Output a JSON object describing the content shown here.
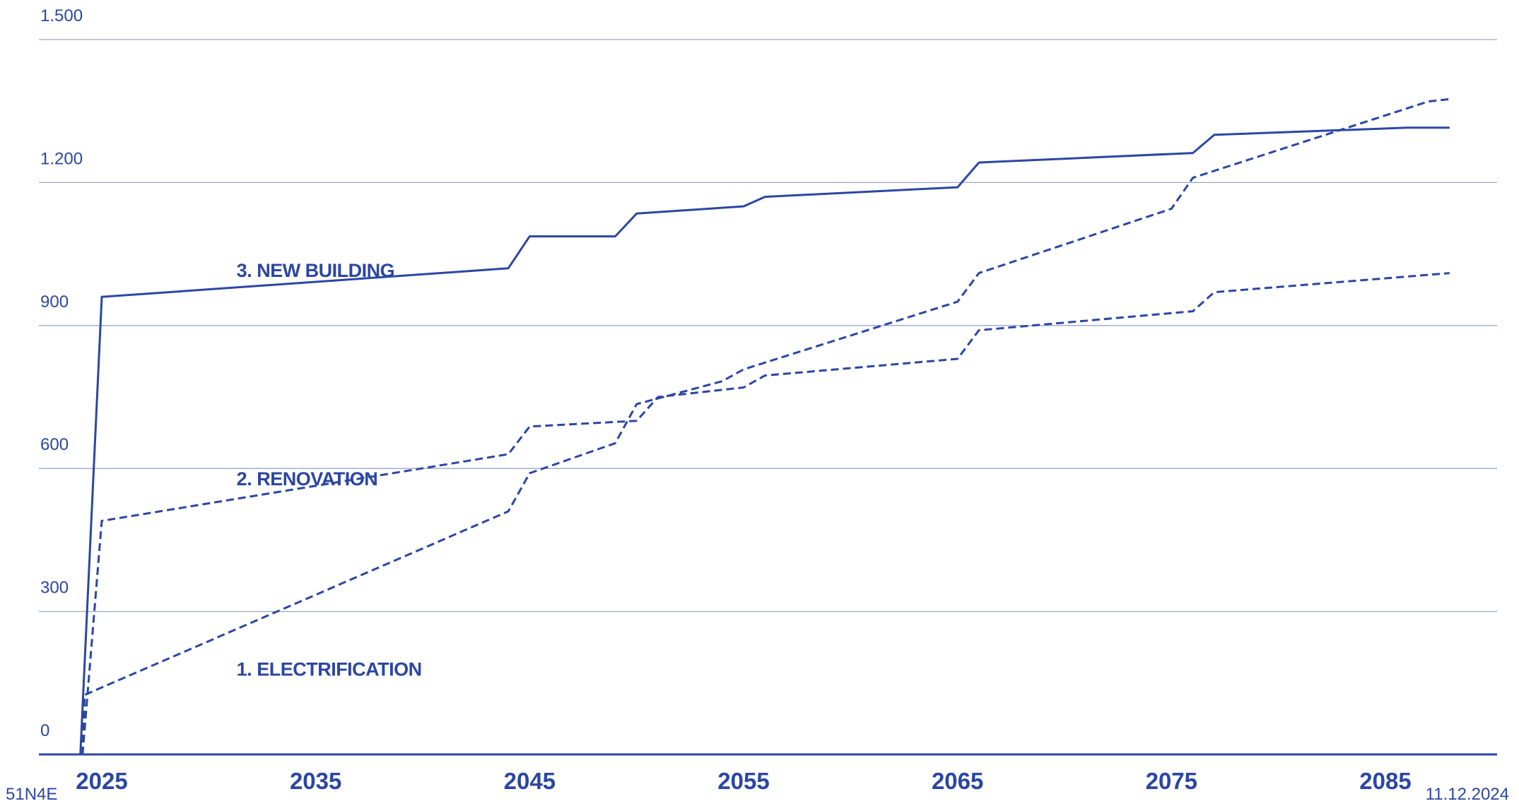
{
  "colors": {
    "line": "#2b46a3",
    "grid": "#9aa6cc"
  },
  "footer": {
    "left": "51N4E",
    "right": "11.12.2024"
  },
  "chart_data": {
    "type": "line",
    "title": "",
    "xlabel": "",
    "ylabel": "",
    "xlim": [
      2024,
      2088
    ],
    "ylim": [
      0,
      1500
    ],
    "x_ticks": [
      2025,
      2035,
      2045,
      2055,
      2065,
      2075,
      2085
    ],
    "x_tick_labels": [
      "2025",
      "2035",
      "2045",
      "2055",
      "2065",
      "2075",
      "2085"
    ],
    "y_ticks": [
      0,
      300,
      600,
      900,
      1200,
      1500
    ],
    "y_tick_labels": [
      "0",
      "300",
      "600",
      "900",
      "1.200",
      "1.500"
    ],
    "grid": true,
    "series": [
      {
        "name": "1. ELECTRIFICATION",
        "style": "dashed",
        "points": [
          [
            2024.1,
            0
          ],
          [
            2024.2,
            125
          ],
          [
            2044,
            510
          ],
          [
            2045,
            590
          ],
          [
            2049,
            653
          ],
          [
            2050,
            735
          ],
          [
            2054,
            783
          ],
          [
            2055,
            808
          ],
          [
            2065,
            950
          ],
          [
            2066,
            1010
          ],
          [
            2075,
            1145
          ],
          [
            2076,
            1210
          ],
          [
            2087,
            1370
          ],
          [
            2088,
            1375
          ]
        ]
      },
      {
        "name": "2. RENOVATION",
        "style": "dashed",
        "points": [
          [
            2024.1,
            0
          ],
          [
            2025,
            490
          ],
          [
            2044,
            630
          ],
          [
            2045,
            688
          ],
          [
            2050,
            700
          ],
          [
            2051,
            750
          ],
          [
            2055,
            770
          ],
          [
            2056,
            795
          ],
          [
            2065,
            830
          ],
          [
            2066,
            890
          ],
          [
            2076,
            930
          ],
          [
            2077,
            970
          ],
          [
            2088,
            1010
          ]
        ]
      },
      {
        "name": "3. NEW BUILDING",
        "style": "solid",
        "points": [
          [
            2024,
            0
          ],
          [
            2025,
            960
          ],
          [
            2044,
            1020
          ],
          [
            2045,
            1087
          ],
          [
            2049,
            1087
          ],
          [
            2050,
            1135
          ],
          [
            2055,
            1150
          ],
          [
            2056,
            1170
          ],
          [
            2065,
            1190
          ],
          [
            2066,
            1242
          ],
          [
            2076,
            1262
          ],
          [
            2077,
            1300
          ],
          [
            2086,
            1315
          ],
          [
            2088,
            1315
          ]
        ]
      }
    ]
  }
}
